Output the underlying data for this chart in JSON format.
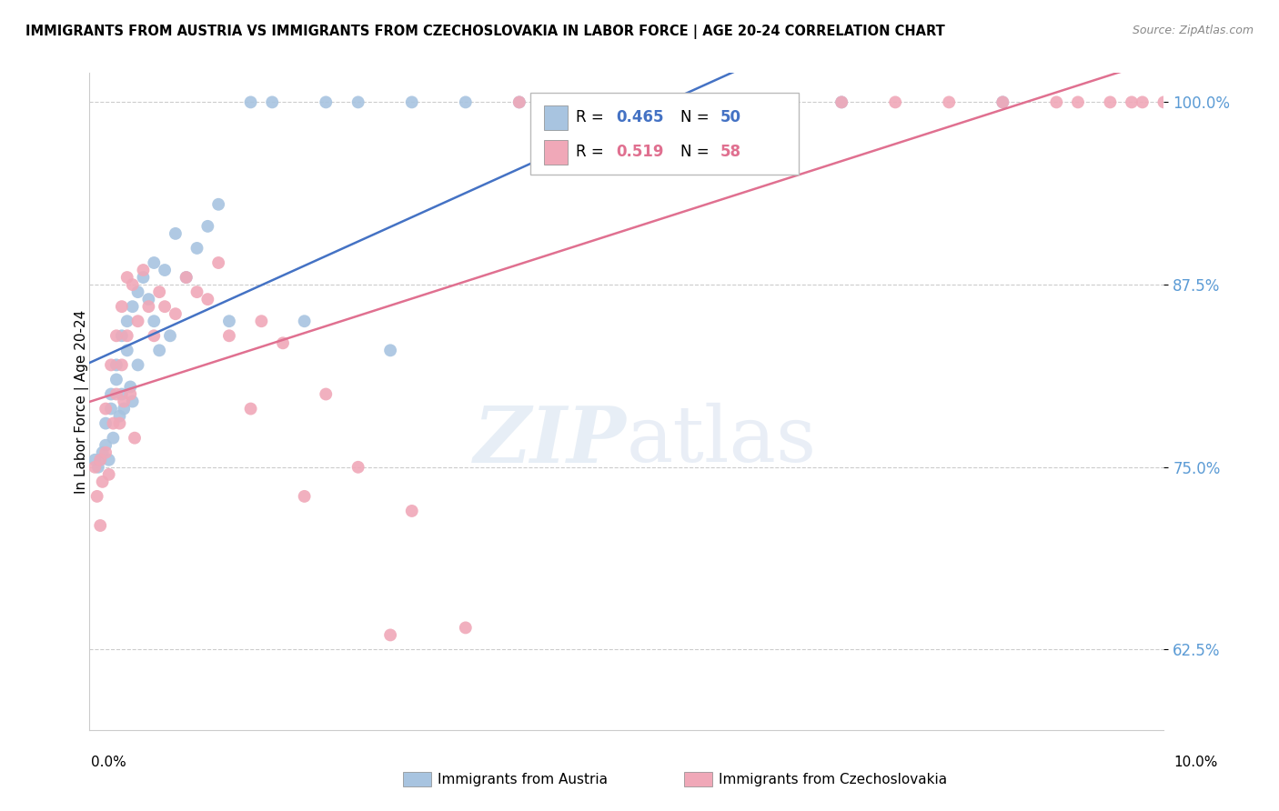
{
  "title": "IMMIGRANTS FROM AUSTRIA VS IMMIGRANTS FROM CZECHOSLOVAKIA IN LABOR FORCE | AGE 20-24 CORRELATION CHART",
  "source": "Source: ZipAtlas.com",
  "ylabel": "In Labor Force | Age 20-24",
  "legend_austria": "Immigrants from Austria",
  "legend_czech": "Immigrants from Czechoslovakia",
  "R_austria": 0.465,
  "N_austria": 50,
  "R_czech": 0.519,
  "N_czech": 58,
  "color_austria": "#a8c4e0",
  "color_czech": "#f0a8b8",
  "line_austria": "#4472c4",
  "line_czech": "#e07090",
  "xlim": [
    0.0,
    10.0
  ],
  "ylim": [
    57.0,
    102.0
  ],
  "yticks": [
    62.5,
    75.0,
    87.5,
    100.0
  ],
  "austria_x": [
    0.05,
    0.08,
    0.1,
    0.12,
    0.15,
    0.15,
    0.18,
    0.2,
    0.2,
    0.22,
    0.25,
    0.25,
    0.28,
    0.3,
    0.3,
    0.32,
    0.35,
    0.35,
    0.38,
    0.4,
    0.4,
    0.45,
    0.45,
    0.5,
    0.55,
    0.6,
    0.6,
    0.65,
    0.7,
    0.75,
    0.8,
    0.9,
    1.0,
    1.1,
    1.2,
    1.3,
    1.5,
    1.7,
    2.0,
    2.2,
    2.5,
    2.8,
    3.0,
    3.5,
    4.0,
    4.5,
    5.5,
    6.5,
    7.0,
    8.5
  ],
  "austria_y": [
    75.5,
    75.0,
    75.5,
    76.0,
    78.0,
    76.5,
    75.5,
    80.0,
    79.0,
    77.0,
    82.0,
    81.0,
    78.5,
    84.0,
    80.0,
    79.0,
    85.0,
    83.0,
    80.5,
    86.0,
    79.5,
    87.0,
    82.0,
    88.0,
    86.5,
    89.0,
    85.0,
    83.0,
    88.5,
    84.0,
    91.0,
    88.0,
    90.0,
    91.5,
    93.0,
    85.0,
    100.0,
    100.0,
    85.0,
    100.0,
    100.0,
    83.0,
    100.0,
    100.0,
    100.0,
    100.0,
    100.0,
    100.0,
    100.0,
    100.0
  ],
  "czech_x": [
    0.05,
    0.07,
    0.1,
    0.1,
    0.12,
    0.15,
    0.15,
    0.18,
    0.2,
    0.22,
    0.25,
    0.25,
    0.28,
    0.3,
    0.3,
    0.32,
    0.35,
    0.35,
    0.38,
    0.4,
    0.42,
    0.45,
    0.5,
    0.55,
    0.6,
    0.65,
    0.7,
    0.8,
    0.9,
    1.0,
    1.1,
    1.2,
    1.3,
    1.5,
    1.6,
    1.8,
    2.0,
    2.2,
    2.5,
    2.8,
    3.0,
    3.5,
    4.0,
    4.5,
    5.0,
    5.5,
    6.0,
    6.5,
    7.0,
    7.5,
    8.0,
    8.5,
    9.0,
    9.5,
    9.8,
    10.0,
    9.2,
    9.7
  ],
  "czech_y": [
    75.0,
    73.0,
    75.5,
    71.0,
    74.0,
    79.0,
    76.0,
    74.5,
    82.0,
    78.0,
    84.0,
    80.0,
    78.0,
    86.0,
    82.0,
    79.5,
    88.0,
    84.0,
    80.0,
    87.5,
    77.0,
    85.0,
    88.5,
    86.0,
    84.0,
    87.0,
    86.0,
    85.5,
    88.0,
    87.0,
    86.5,
    89.0,
    84.0,
    79.0,
    85.0,
    83.5,
    73.0,
    80.0,
    75.0,
    63.5,
    72.0,
    64.0,
    100.0,
    100.0,
    100.0,
    100.0,
    100.0,
    100.0,
    100.0,
    100.0,
    100.0,
    100.0,
    100.0,
    100.0,
    100.0,
    100.0,
    100.0,
    100.0
  ]
}
